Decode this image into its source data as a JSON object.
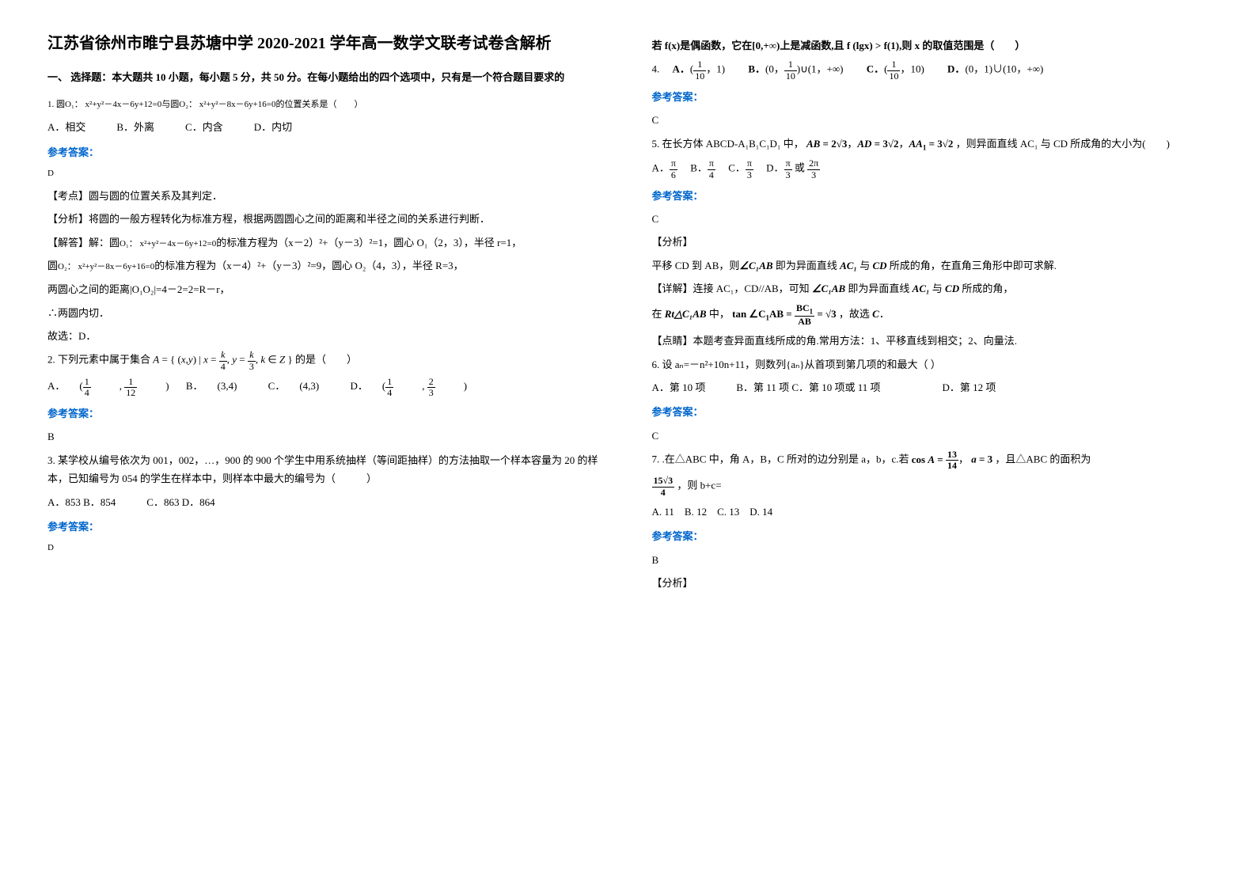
{
  "title": "江苏省徐州市睢宁县苏塘中学 2020-2021 学年高一数学文联考试卷含解析",
  "sectionA": "一、 选择题：本大题共 10 小题，每小题 5 分，共 50 分。在每小题给出的四个选项中，只有是一个符合题目要求的",
  "q1": {
    "stem_a": "1. 圆",
    "o1": "O₁： x²+y²－4x－6y+12=0",
    "stem_b": "与圆",
    "o2": "O₂： x²+y²－8x－6y+16=0",
    "stem_c": "的位置关系是（　　）",
    "opts": "A．相交　　　B．外离　　　C．内含　　　D．内切",
    "ans": "D",
    "kd": "【考点】圆与圆的位置关系及其判定．",
    "fx": "【分析】将圆的一般方程转化为标准方程，根据两圆圆心之间的距离和半径之间的关系进行判断．",
    "jd1a": "【解答】解：圆",
    "jd1b": "的标准方程为（x－2）²+（y－3）²=1，圆心 O₁（2，3），半径 r=1，",
    "jd2a": "圆",
    "jd2b": "的标准方程为（x－4）²+（y－3）²=9，圆心 O₂（4，3），半径 R=3，",
    "jd3": "两圆心之间的距离|O₁O₂|=4－2=2=R－r，",
    "jd4": "∴两圆内切．",
    "jd5": "故选：D．"
  },
  "q2": {
    "stem_a": "2. 下列元素中属于集合",
    "set": "A = {(x, y) | x = k/4, y = k/3, k ∈ Z}",
    "stem_b": "的是（　　）",
    "optA": "A．",
    "optAv": "(1/4, 1/12)",
    "optB": "B．",
    "optBv": "(3,4)",
    "optC": "C．",
    "optCv": "(4,3)",
    "optD": "D．",
    "optDv": "(1/4, 2/3)",
    "ans": "B"
  },
  "q3": {
    "stem": "3. 某学校从编号依次为 001，002，…，900 的 900 个学生中用系统抽样（等间距抽样）的方法抽取一个样本容量为 20 的样本，已知编号为 054 的学生在样本中，则样本中最大的编号为（　　　）",
    "opts": "A．853  B．854　　　C．863 D．864",
    "ans": "D"
  },
  "q4": {
    "stem": "若 f(x)是偶函数，它在[0,+∞)上是减函数,且 f (lgx) > f(1),则 x 的取值范围是（　　）",
    "optA": "A．(1/10，1)",
    "optB": "B．(0，1/10)∪(1，+∞)",
    "optC": "C．(1/10，10)",
    "optD": "D．(0，1)∪(10，+∞)",
    "ans": "C"
  },
  "q5": {
    "stem_a": "5. 在长方体 ABCD-A₁B₁C₁D₁ 中，",
    "ab": "AB = 2√3",
    "ad": "AD = 3√2",
    "aa1": "AA₁ = 3√2",
    "stem_b": "，则异面直线 AC₁ 与 CD 所成角的大小为(　　)",
    "optA": "A．π/6",
    "optB": "B．π/4",
    "optC": "C．π/3",
    "optD": "D．π/3 或 2π/3",
    "ans": "C",
    "fx": "【分析】",
    "fx1a": "平移 CD 到 AB，则",
    "fx1ang": "∠C₁AB",
    "fx1b": " 即为异面直线 ",
    "fx1ac1": "AC₁",
    "fx1c": " 与 ",
    "fx1cd": "CD",
    "fx1d": " 所成的角，在直角三角形中即可求解.",
    "xj1": "【详解】连接 AC₁，CD//AB，可知 ",
    "xj1b": " 即为异面直线 ",
    "xj1c": " 与 ",
    "xj1d": " 所成的角，",
    "xj2a": "在 ",
    "xj2rt": "Rt△C₁AB",
    "xj2b": " 中，",
    "xj2tan": "tan ∠C₁AB = BC₁/AB = √3",
    "xj2c": "，故选 ",
    "xj2cc": "C",
    "xj2d": "．",
    "ds": "【点睛】本题考查异面直线所成的角.常用方法：1、平移直线到相交；2、向量法."
  },
  "q6": {
    "stem": "6. 设 aₙ=－n²+10n+11，则数列{aₙ}从首项到第几项的和最大（  ）",
    "opts": "A．第 10 项　　　B．第 11 项  C．第 10 项或 11 项　　　　　　D．第 12 项",
    "ans": "C"
  },
  "q7": {
    "stem_a": "7. .在△ABC 中，角 A，B，C 所对的边分别是 a，b，c.若",
    "cos": "cos A = 13/14",
    "a": "a = 3",
    "stem_b": "，且△ABC 的面积为",
    "area": "15√3 / 4",
    "stem_c": "，则 b+c=",
    "opts": "A. 11　B. 12　C. 13　D. 14",
    "ans": "B",
    "fx": "【分析】"
  },
  "labels": {
    "ref": "参考答案："
  }
}
